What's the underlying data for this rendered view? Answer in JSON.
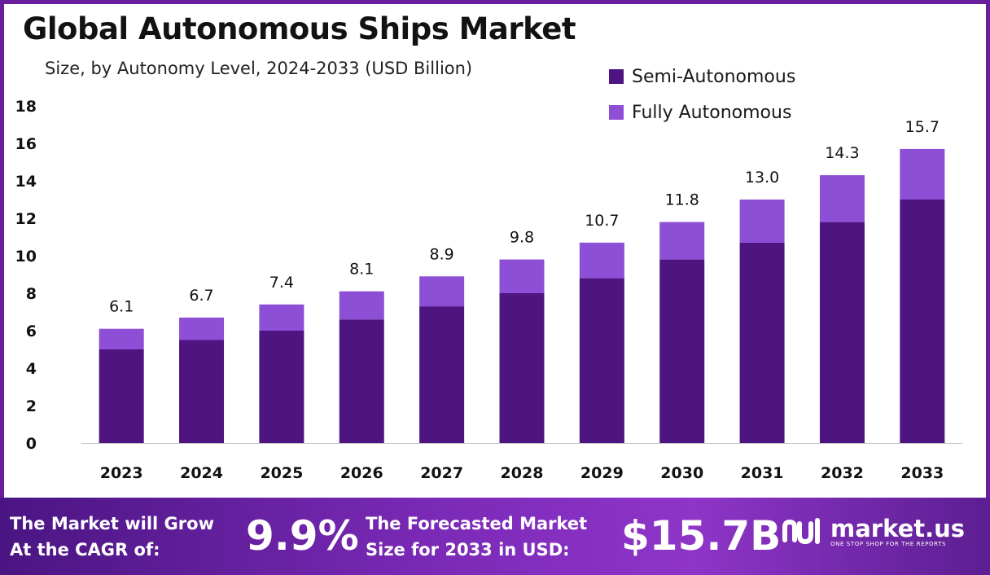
{
  "header": {
    "title": "Global Autonomous Ships Market",
    "subtitle": "Size, by Autonomy Level, 2024-2033 (USD Billion)"
  },
  "footer": {
    "cagr_label_1": "The Market will Grow",
    "cagr_label_2": "At the CAGR of:",
    "cagr_value": "9.9%",
    "forecast_label_1": "The Forecasted Market",
    "forecast_label_2": "Size for 2033 in USD:",
    "forecast_value": "$15.7B",
    "brand_name": "market.us",
    "brand_tagline": "ONE STOP SHOP FOR THE REPORTS",
    "logo_icon": "market-us-logo-icon"
  },
  "colors": {
    "semi_autonomous": "#4e1580",
    "fully_autonomous": "#8d4fd6",
    "frame": "#6a1e9e"
  },
  "chart_data": {
    "type": "bar",
    "stacked": true,
    "title": "Global Autonomous Ships Market",
    "subtitle": "Size, by Autonomy Level, 2024-2033 (USD Billion)",
    "categories": [
      "2023",
      "2024",
      "2025",
      "2026",
      "2027",
      "2028",
      "2029",
      "2030",
      "2031",
      "2032",
      "2033"
    ],
    "series": [
      {
        "name": "Semi-Autonomous",
        "color": "#4e1580",
        "values": [
          5.0,
          5.5,
          6.0,
          6.6,
          7.3,
          8.0,
          8.8,
          9.8,
          10.7,
          11.8,
          13.0
        ]
      },
      {
        "name": "Fully Autonomous",
        "color": "#8d4fd6",
        "values": [
          1.1,
          1.2,
          1.4,
          1.5,
          1.6,
          1.8,
          1.9,
          2.0,
          2.3,
          2.5,
          2.7
        ]
      }
    ],
    "totals": [
      6.1,
      6.7,
      7.4,
      8.1,
      8.9,
      9.8,
      10.7,
      11.8,
      13.0,
      14.3,
      15.7
    ],
    "total_labels": [
      "6.1",
      "6.7",
      "7.4",
      "8.1",
      "8.9",
      "9.8",
      "10.7",
      "11.8",
      "13.0",
      "14.3",
      "15.7"
    ],
    "yticks": [
      0,
      2,
      4,
      6,
      8,
      10,
      12,
      14,
      16,
      18
    ],
    "ylim": [
      0,
      18
    ],
    "xlabel": "",
    "ylabel": "",
    "grid": false,
    "legend_position": "top-right"
  }
}
